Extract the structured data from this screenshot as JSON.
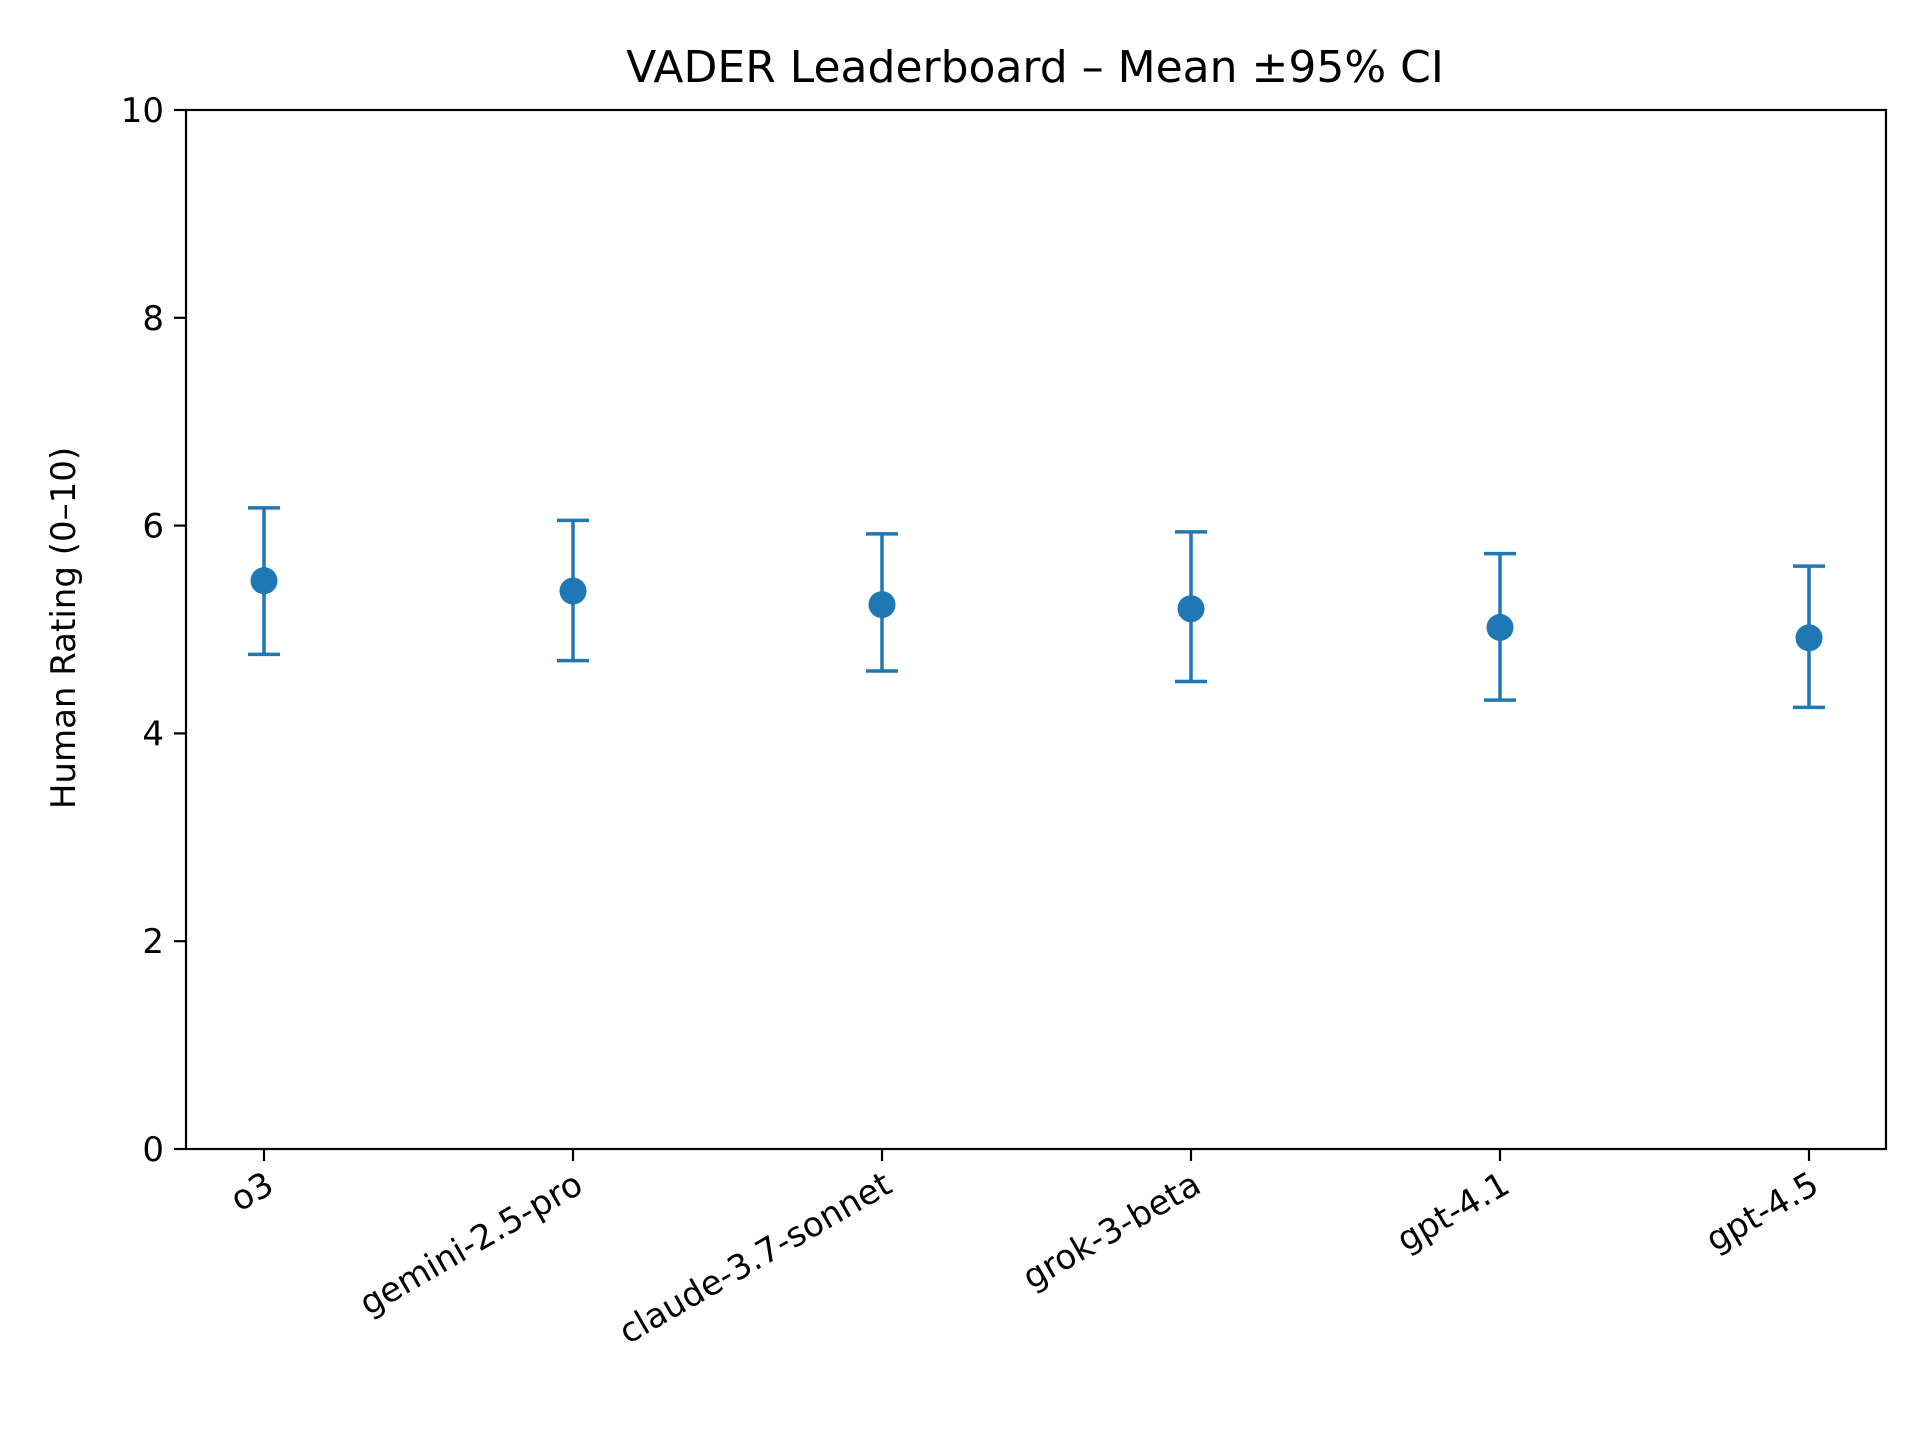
{
  "chart_data": {
    "type": "scatter",
    "title": "VADER Leaderboard – Mean ±95% CI",
    "xlabel": "",
    "ylabel": "Human Rating (0–10)",
    "ylim": [
      0,
      10
    ],
    "yticks": [
      "0",
      "2",
      "4",
      "6",
      "8",
      "10"
    ],
    "grid": false,
    "categories": [
      "o3",
      "gemini-2.5-pro",
      "claude-3.7-sonnet",
      "grok-3-beta",
      "gpt-4.1",
      "gpt-4.5"
    ],
    "series": [
      {
        "color": "#1f77b4",
        "mean": [
          5.47,
          5.37,
          5.24,
          5.2,
          5.02,
          4.92
        ],
        "ci_low": [
          4.76,
          4.7,
          4.6,
          4.5,
          4.32,
          4.25
        ],
        "ci_high": [
          6.17,
          6.05,
          5.92,
          5.94,
          5.73,
          5.61
        ]
      }
    ]
  }
}
